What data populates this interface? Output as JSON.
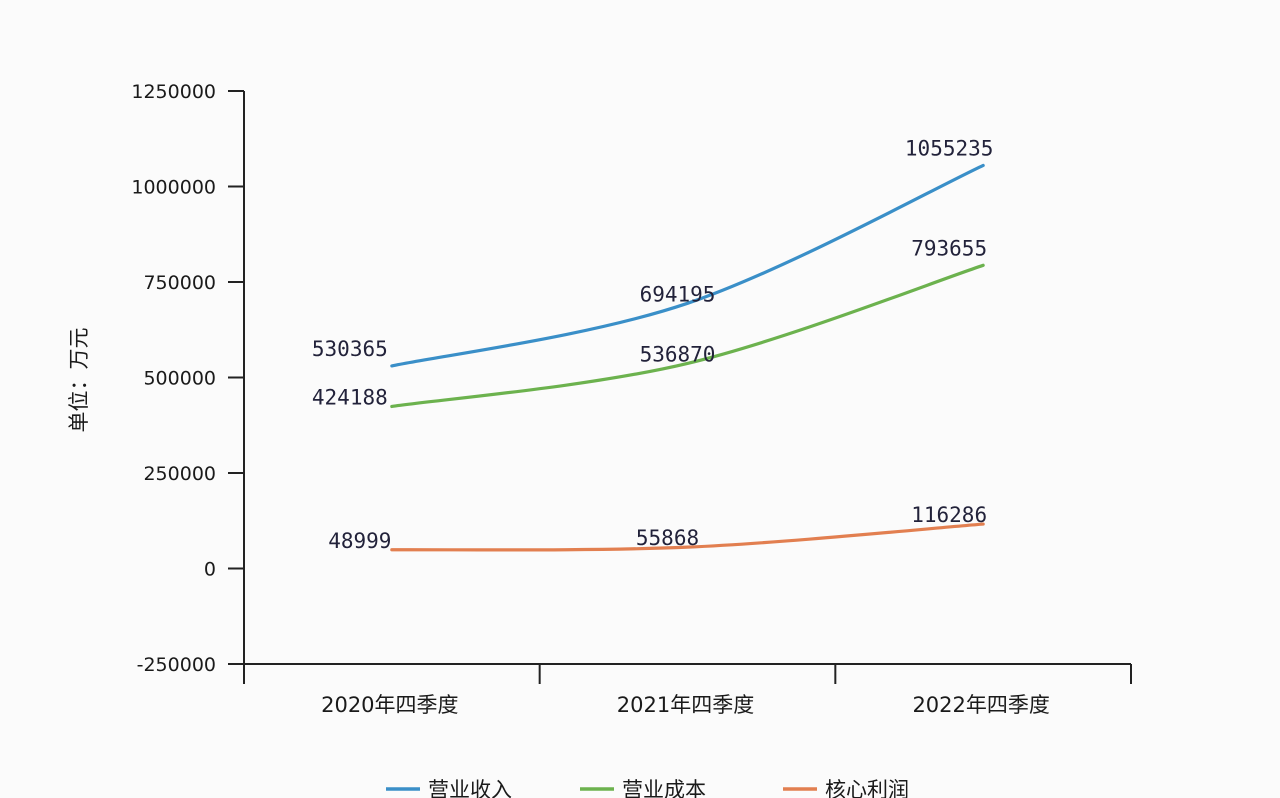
{
  "chart_data": {
    "type": "line",
    "categories": [
      "2020年四季度",
      "2021年四季度",
      "2022年四季度"
    ],
    "series": [
      {
        "name": "营业收入",
        "values": [
          530365,
          694195,
          1055235
        ],
        "color": "#3a8fc8"
      },
      {
        "name": "营业成本",
        "values": [
          424188,
          536870,
          793655
        ],
        "color": "#6cb24e"
      },
      {
        "name": "核心利润",
        "values": [
          48999,
          55868,
          116286
        ],
        "color": "#e27f50"
      }
    ],
    "ylabel": "单位：万元",
    "ylim": [
      -250000,
      1250000
    ],
    "yticks": [
      1250000,
      1000000,
      750000,
      500000,
      250000,
      0,
      -250000
    ],
    "ytick_labels": [
      "1250000",
      "1000000",
      "750000",
      "500000",
      "250000",
      "0",
      "-250000"
    ],
    "data_labels": true,
    "grid": false,
    "legend_position": "bottom"
  }
}
